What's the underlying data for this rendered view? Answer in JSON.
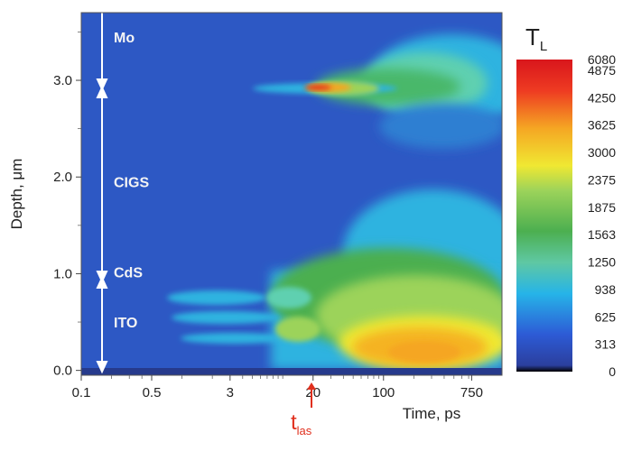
{
  "chart_data": {
    "type": "heatmap",
    "xlabel": "Time, ps",
    "ylabel": "Depth, μm",
    "x_scale": "log",
    "x_ticks": [
      "0.1",
      "0.5",
      "3",
      "20",
      "100",
      "750"
    ],
    "x_tick_values": [
      0.1,
      0.5,
      3,
      20,
      100,
      750
    ],
    "y_ticks": [
      "0.0",
      "1.0",
      "2.0",
      "3.0"
    ],
    "y_tick_values": [
      0.0,
      1.0,
      2.0,
      3.0
    ],
    "xlim": [
      0.1,
      1500
    ],
    "ylim": [
      -0.05,
      3.7
    ],
    "layers": [
      {
        "label": "Mo",
        "depth_range": [
          3.1,
          3.7
        ]
      },
      {
        "label": "CIGS",
        "depth_range": [
          1.0,
          3.1
        ]
      },
      {
        "label": "CdS",
        "depth_range": [
          0.95,
          1.05
        ]
      },
      {
        "label": "ITO",
        "depth_range": [
          0.0,
          0.95
        ]
      }
    ],
    "hot_regions": [
      {
        "desc": "Mo/CIGS interface",
        "depth": 3.1,
        "time_ps": 20,
        "peak_T": 5000
      },
      {
        "desc": "ITO layer",
        "depth": 0.25,
        "time_ps": 100,
        "peak_T": 3700
      }
    ],
    "colorbar": {
      "title": "T",
      "title_sub": "L",
      "ticks": [
        "6080",
        "4875",
        "4250",
        "3625",
        "3000",
        "2375",
        "1875",
        "1563",
        "1250",
        "938",
        "625",
        "313",
        "0"
      ]
    },
    "annotation": {
      "label": "t",
      "label_sub": "las",
      "x_value": 15,
      "color": "#e0301e"
    }
  }
}
